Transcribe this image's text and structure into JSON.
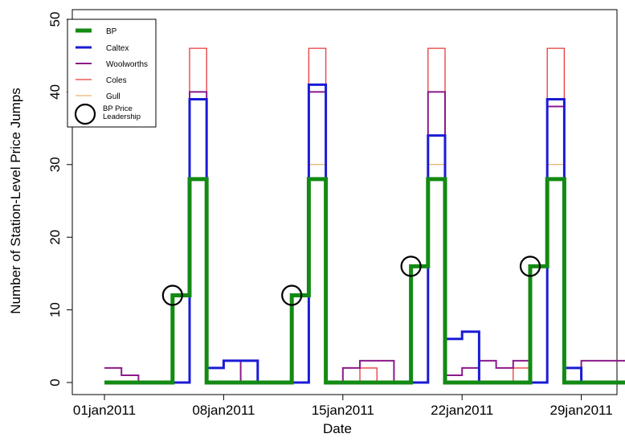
{
  "chart_data": {
    "type": "line",
    "step": true,
    "xlabel": "Date",
    "ylabel": "Number of Station-Level Price Jumps",
    "ylim": [
      0,
      50
    ],
    "yticks": [
      0,
      10,
      20,
      30,
      40,
      50
    ],
    "xlim": [
      0,
      30.2
    ],
    "xticks": [
      {
        "value": 0,
        "label": "01jan2011"
      },
      {
        "value": 7,
        "label": "08jan2011"
      },
      {
        "value": 14,
        "label": "15jan2011"
      },
      {
        "value": 21,
        "label": "22jan2011"
      },
      {
        "value": 28,
        "label": "29jan2011"
      }
    ],
    "x_dates": [
      "01jan2011",
      "02jan2011",
      "03jan2011",
      "04jan2011",
      "05jan2011",
      "06jan2011",
      "07jan2011",
      "08jan2011",
      "09jan2011",
      "10jan2011",
      "11jan2011",
      "12jan2011",
      "13jan2011",
      "14jan2011",
      "15jan2011",
      "16jan2011",
      "17jan2011",
      "18jan2011",
      "19jan2011",
      "20jan2011",
      "21jan2011",
      "22jan2011",
      "23jan2011",
      "24jan2011",
      "25jan2011",
      "26jan2011",
      "27jan2011",
      "28jan2011",
      "29jan2011",
      "30jan2011",
      "31jan2011"
    ],
    "legend_position": "top-left",
    "grid": false,
    "series": [
      {
        "name": "BP",
        "color": "#138a13",
        "values": [
          0,
          0,
          0,
          0,
          12,
          28,
          0,
          0,
          0,
          0,
          0,
          12,
          28,
          0,
          0,
          0,
          0,
          0,
          16,
          28,
          0,
          0,
          0,
          0,
          0,
          16,
          28,
          0,
          0,
          0,
          0
        ]
      },
      {
        "name": "Caltex",
        "color": "#1b1bd6",
        "values": [
          0,
          0,
          0,
          0,
          0,
          39,
          2,
          3,
          3,
          0,
          0,
          0,
          41,
          0,
          0,
          0,
          0,
          0,
          0,
          34,
          6,
          7,
          0,
          0,
          0,
          0,
          39,
          2,
          0,
          0,
          0
        ]
      },
      {
        "name": "Woolworths",
        "color": "#8b1a8b",
        "values": [
          2,
          1,
          0,
          0,
          0,
          40,
          2,
          3,
          0,
          0,
          0,
          0,
          40,
          0,
          2,
          3,
          3,
          0,
          0,
          40,
          1,
          2,
          3,
          2,
          3,
          0,
          38,
          2,
          3,
          3,
          3
        ]
      },
      {
        "name": "Coles",
        "color": "#e83a3a",
        "values": [
          0,
          0,
          0,
          0,
          0,
          46,
          0,
          0,
          0,
          0,
          0,
          0,
          46,
          0,
          0,
          2,
          0,
          0,
          0,
          46,
          0,
          0,
          0,
          0,
          2,
          0,
          46,
          0,
          0,
          0,
          0
        ]
      },
      {
        "name": "Gull",
        "color": "#e8a040",
        "values": [
          0,
          0,
          0,
          0,
          0,
          28,
          0,
          0,
          0,
          0,
          0,
          0,
          30,
          0,
          0,
          0,
          0,
          0,
          0,
          30,
          0,
          0,
          0,
          0,
          0,
          0,
          30,
          0,
          0,
          0,
          0
        ]
      }
    ],
    "bp_price_leadership": [
      {
        "date": "05jan2011",
        "x": 4,
        "y": 12
      },
      {
        "date": "12jan2011",
        "x": 11,
        "y": 12
      },
      {
        "date": "19jan2011",
        "x": 18,
        "y": 16
      },
      {
        "date": "26jan2011",
        "x": 25,
        "y": 16
      }
    ],
    "legend": [
      {
        "label": "BP",
        "kind": "line",
        "color": "#138a13"
      },
      {
        "label": "Caltex",
        "kind": "line",
        "color": "#1b1bd6"
      },
      {
        "label": "Woolworths",
        "kind": "line",
        "color": "#8b1a8b"
      },
      {
        "label": "Coles",
        "kind": "line",
        "color": "#e83a3a"
      },
      {
        "label": "Gull",
        "kind": "line",
        "color": "#e8a040"
      },
      {
        "label": "BP Price Leadership",
        "label_lines": [
          "BP Price",
          "Leadership"
        ],
        "kind": "circle",
        "color": "#000000"
      }
    ]
  }
}
